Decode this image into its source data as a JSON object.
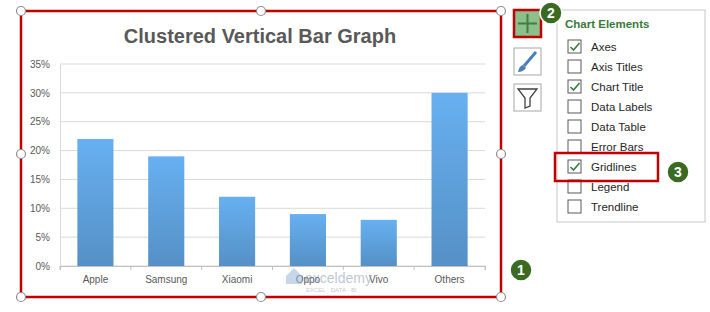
{
  "chart_data": {
    "type": "bar",
    "title": "Clustered Vertical Bar Graph",
    "categories": [
      "Apple",
      "Samsung",
      "Xiaomi",
      "Oppo",
      "Vivo",
      "Others"
    ],
    "values": [
      22,
      19,
      12,
      9,
      8,
      30
    ],
    "color": "#5b9bd5",
    "ylim": [
      0,
      35
    ],
    "yticks": [
      {
        "value": 0,
        "label": "0%"
      },
      {
        "value": 5,
        "label": "5%"
      },
      {
        "value": 10,
        "label": "10%"
      },
      {
        "value": 15,
        "label": "15%"
      },
      {
        "value": 20,
        "label": "20%"
      },
      {
        "value": 25,
        "label": "25%"
      },
      {
        "value": 30,
        "label": "30%"
      },
      {
        "value": 35,
        "label": "35%"
      }
    ],
    "grid": true
  },
  "chart_elements": {
    "title": "Chart Elements",
    "items": [
      {
        "label": "Axes",
        "checked": true
      },
      {
        "label": "Axis Titles",
        "checked": false
      },
      {
        "label": "Chart Title",
        "checked": true
      },
      {
        "label": "Data Labels",
        "checked": false
      },
      {
        "label": "Data Table",
        "checked": false
      },
      {
        "label": "Error Bars",
        "checked": false
      },
      {
        "label": "Gridlines",
        "checked": true
      },
      {
        "label": "Legend",
        "checked": false
      },
      {
        "label": "Trendline",
        "checked": false
      }
    ]
  },
  "callouts": [
    "1",
    "2",
    "3"
  ],
  "watermark": {
    "name": "exceldemy",
    "tagline": "EXCEL · DATA · BI"
  }
}
